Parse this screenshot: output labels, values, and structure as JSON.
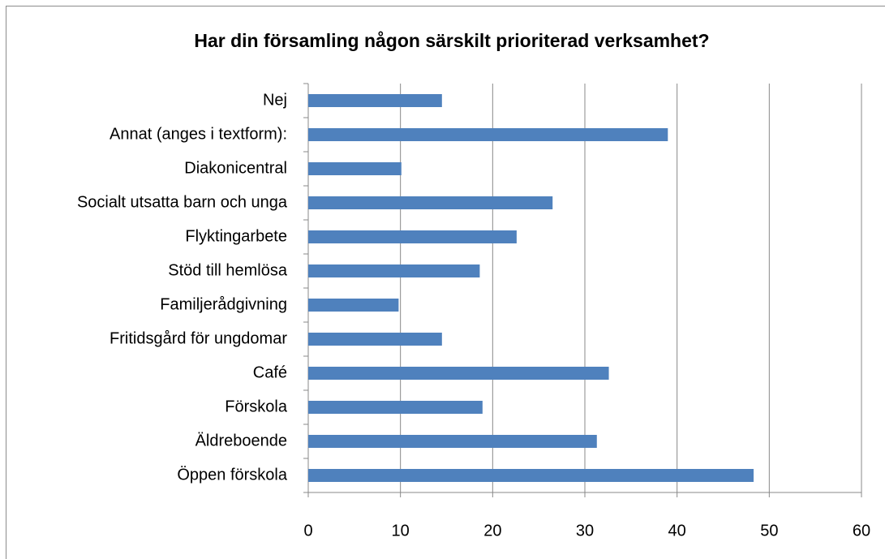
{
  "chart_data": {
    "type": "barh",
    "title": "Har din församling någon särskilt prioriterad verksamhet?",
    "categories": [
      "Nej",
      "Annat (anges i textform):",
      "Diakonicentral",
      "Socialt utsatta barn och unga",
      "Flyktingarbete",
      "Stöd till hemlösa",
      "Familjerådgivning",
      "Fritidsgård för ungdomar",
      "Café",
      "Förskola",
      "Äldreboende",
      "Öppen förskola"
    ],
    "values": [
      14.5,
      39.0,
      10.1,
      26.5,
      22.6,
      18.6,
      9.8,
      14.5,
      32.6,
      18.9,
      31.3,
      48.3
    ],
    "color": "#4f81bd",
    "xlim": [
      0,
      60
    ],
    "xticks": [
      0,
      10,
      20,
      30,
      40,
      50,
      60
    ],
    "grid": true
  }
}
